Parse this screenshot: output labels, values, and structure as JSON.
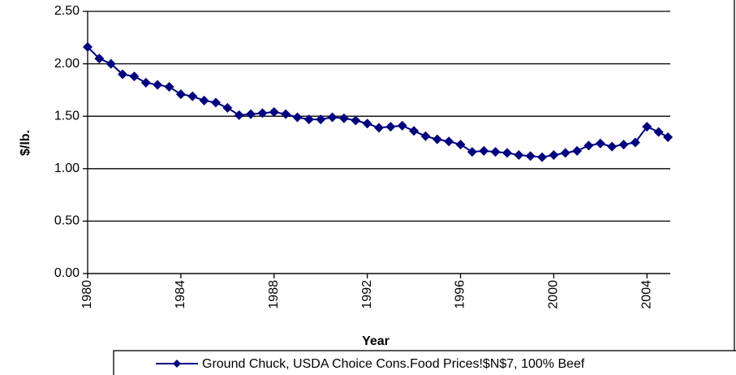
{
  "chart_data": {
    "type": "line",
    "x_label": "Year",
    "y_label": "$/lb.",
    "x": [
      1980,
      1980.5,
      1981,
      1981.5,
      1982,
      1982.5,
      1983,
      1983.5,
      1984,
      1984.5,
      1985,
      1985.5,
      1986,
      1986.5,
      1987,
      1987.5,
      1988,
      1988.5,
      1989,
      1989.5,
      1990,
      1990.5,
      1991,
      1991.5,
      1992,
      1992.5,
      1993,
      1993.5,
      1994,
      1994.5,
      1995,
      1995.5,
      1996,
      1996.5,
      1997,
      1997.5,
      1998,
      1998.5,
      1999,
      1999.5,
      2000,
      2000.5,
      2001,
      2001.5,
      2002,
      2002.5,
      2003,
      2003.5,
      2004,
      2004.5,
      2004.9
    ],
    "series": [
      {
        "name": "Ground Chuck, USDA Choice Cons.Food  Prices!$N$7, 100% Beef",
        "color": "#000080",
        "values": [
          2.16,
          2.05,
          2.0,
          1.9,
          1.88,
          1.82,
          1.8,
          1.78,
          1.71,
          1.69,
          1.65,
          1.63,
          1.58,
          1.51,
          1.52,
          1.53,
          1.54,
          1.52,
          1.49,
          1.47,
          1.47,
          1.49,
          1.48,
          1.46,
          1.43,
          1.39,
          1.4,
          1.41,
          1.36,
          1.31,
          1.28,
          1.26,
          1.23,
          1.16,
          1.17,
          1.16,
          1.15,
          1.13,
          1.12,
          1.11,
          1.13,
          1.15,
          1.17,
          1.22,
          1.24,
          1.21,
          1.23,
          1.25,
          1.4,
          1.35,
          1.3
        ]
      }
    ],
    "xlim": [
      1980,
      2005
    ],
    "xticks": [
      1980,
      1984,
      1988,
      1992,
      1996,
      2000,
      2004
    ],
    "ylim": [
      0,
      2.5
    ],
    "yticks": [
      {
        "value": 0,
        "label": "0.00"
      },
      {
        "value": 0.5,
        "label": "0.50"
      },
      {
        "value": 1,
        "label": "1.00"
      },
      {
        "value": 1.5,
        "label": "1.50"
      },
      {
        "value": 2,
        "label": "2.00"
      },
      {
        "value": 2.5,
        "label": "2.50"
      }
    ],
    "grid": true
  }
}
